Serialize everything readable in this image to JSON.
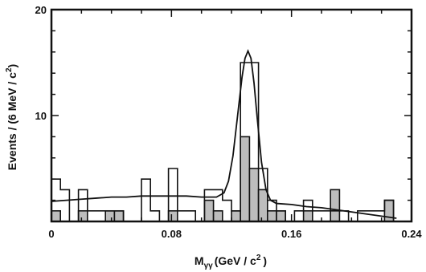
{
  "chart_data": {
    "type": "bar",
    "title": "",
    "xlabel": "M",
    "xlabel_sub": "γγ",
    "xlabel_unit": "(GeV / c",
    "xlabel_sup": "2",
    "xlabel_close": ")",
    "ylabel": "Events / (6 MeV / c",
    "ylabel_sup": "2",
    "ylabel_close": ")",
    "xlim": [
      0,
      0.24
    ],
    "ylim": [
      0,
      20
    ],
    "xticks": [
      0,
      0.08,
      0.16,
      0.24
    ],
    "xtick_labels": [
      "0",
      "0.08",
      "0.16",
      "0.24"
    ],
    "yticks": [
      10,
      20
    ],
    "ytick_labels": [
      "10",
      "20"
    ],
    "bin_width": 0.006,
    "series": [
      {
        "style": "open-histogram",
        "x": [
          0,
          0.006,
          0.012,
          0.018,
          0.024,
          0.03,
          0.036,
          0.042,
          0.048,
          0.054,
          0.06,
          0.066,
          0.072,
          0.078,
          0.084,
          0.09,
          0.096,
          0.102,
          0.108,
          0.114,
          0.12,
          0.126,
          0.132,
          0.138,
          0.144,
          0.15,
          0.156,
          0.162,
          0.168,
          0.174,
          0.18,
          0.186,
          0.192,
          0.198,
          0.204,
          0.21,
          0.216,
          0.222,
          0.228,
          0.234
        ],
        "values": [
          4,
          3,
          0,
          3,
          1,
          1,
          1,
          1,
          0,
          0,
          4,
          1,
          0,
          5,
          1,
          1,
          0,
          3,
          3,
          2,
          1,
          15,
          15,
          5,
          2,
          1,
          0,
          1,
          2,
          1,
          1,
          1,
          1,
          0,
          1,
          1,
          1,
          2,
          0,
          0
        ]
      },
      {
        "style": "shaded-histogram",
        "x": [
          0,
          0.006,
          0.012,
          0.018,
          0.024,
          0.03,
          0.036,
          0.042,
          0.048,
          0.054,
          0.06,
          0.066,
          0.072,
          0.078,
          0.084,
          0.09,
          0.096,
          0.102,
          0.108,
          0.114,
          0.12,
          0.126,
          0.132,
          0.138,
          0.144,
          0.15,
          0.156,
          0.162,
          0.168,
          0.174,
          0.18,
          0.186,
          0.192,
          0.198,
          0.204,
          0.21,
          0.216,
          0.222,
          0.228,
          0.234
        ],
        "values": [
          1,
          0,
          0,
          1,
          0,
          0,
          1,
          1,
          0,
          0,
          0,
          0,
          0,
          1,
          0,
          0,
          0,
          2,
          1,
          0,
          1,
          8,
          5,
          3,
          1,
          1,
          0,
          0,
          1,
          0,
          0,
          3,
          0,
          0,
          0,
          0,
          0,
          2,
          0,
          0
        ]
      },
      {
        "style": "fit-curve",
        "x": [
          0.0,
          0.01,
          0.02,
          0.03,
          0.04,
          0.05,
          0.06,
          0.07,
          0.08,
          0.09,
          0.1,
          0.11,
          0.115,
          0.118,
          0.121,
          0.124,
          0.127,
          0.129,
          0.131,
          0.133,
          0.135,
          0.137,
          0.14,
          0.143,
          0.146,
          0.15,
          0.16,
          0.17,
          0.18,
          0.19,
          0.2,
          0.21,
          0.22,
          0.23
        ],
        "values": [
          1.9,
          2.0,
          2.1,
          2.2,
          2.3,
          2.3,
          2.4,
          2.4,
          2.4,
          2.4,
          2.3,
          2.3,
          2.7,
          3.8,
          6.2,
          9.9,
          13.6,
          15.4,
          16.1,
          15.4,
          13.1,
          10.0,
          5.6,
          3.0,
          2.0,
          1.7,
          1.6,
          1.4,
          1.3,
          1.1,
          0.9,
          0.7,
          0.5,
          0.3
        ]
      }
    ]
  }
}
